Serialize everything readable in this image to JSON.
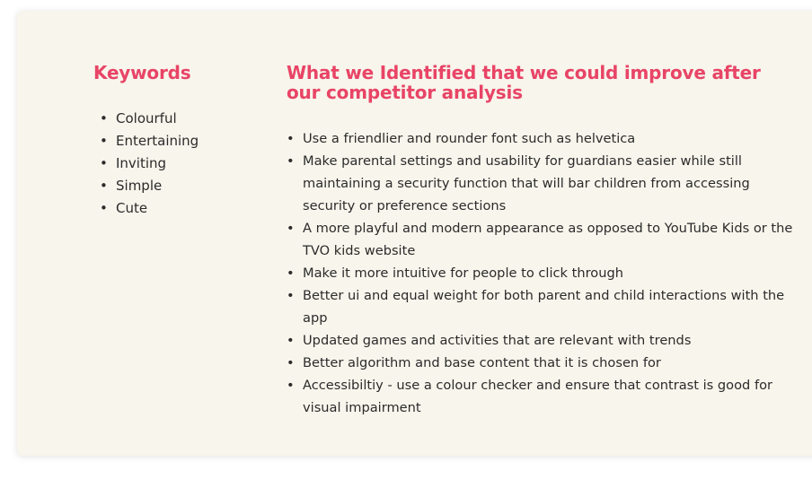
{
  "keywords": {
    "title": "Keywords",
    "items": [
      "Colourful",
      "Entertaining",
      "Inviting",
      "Simple",
      "Cute"
    ]
  },
  "improvements": {
    "title": "What we Identified that we could improve after our competitor analysis",
    "items": [
      "Use a friendlier and rounder font such as helvetica",
      "Make parental settings and usability for guardians easier while still maintaining a security function that will bar children from accessing security or preference sections",
      "A more playful and modern appearance as opposed to YouTube Kids or the TVO kids website",
      "Make it more intuitive for people to click through",
      "Better ui and equal weight for both parent and child interactions with the app",
      "Updated games and activities that are relevant with trends",
      "Better algorithm and base content that it is chosen for",
      "Accessibiltiy - use a colour checker and ensure that contrast is good for visual impairment"
    ]
  },
  "colors": {
    "heading": "#e84466",
    "card_background": "#f8f5ec",
    "text": "#2b2b2b"
  }
}
